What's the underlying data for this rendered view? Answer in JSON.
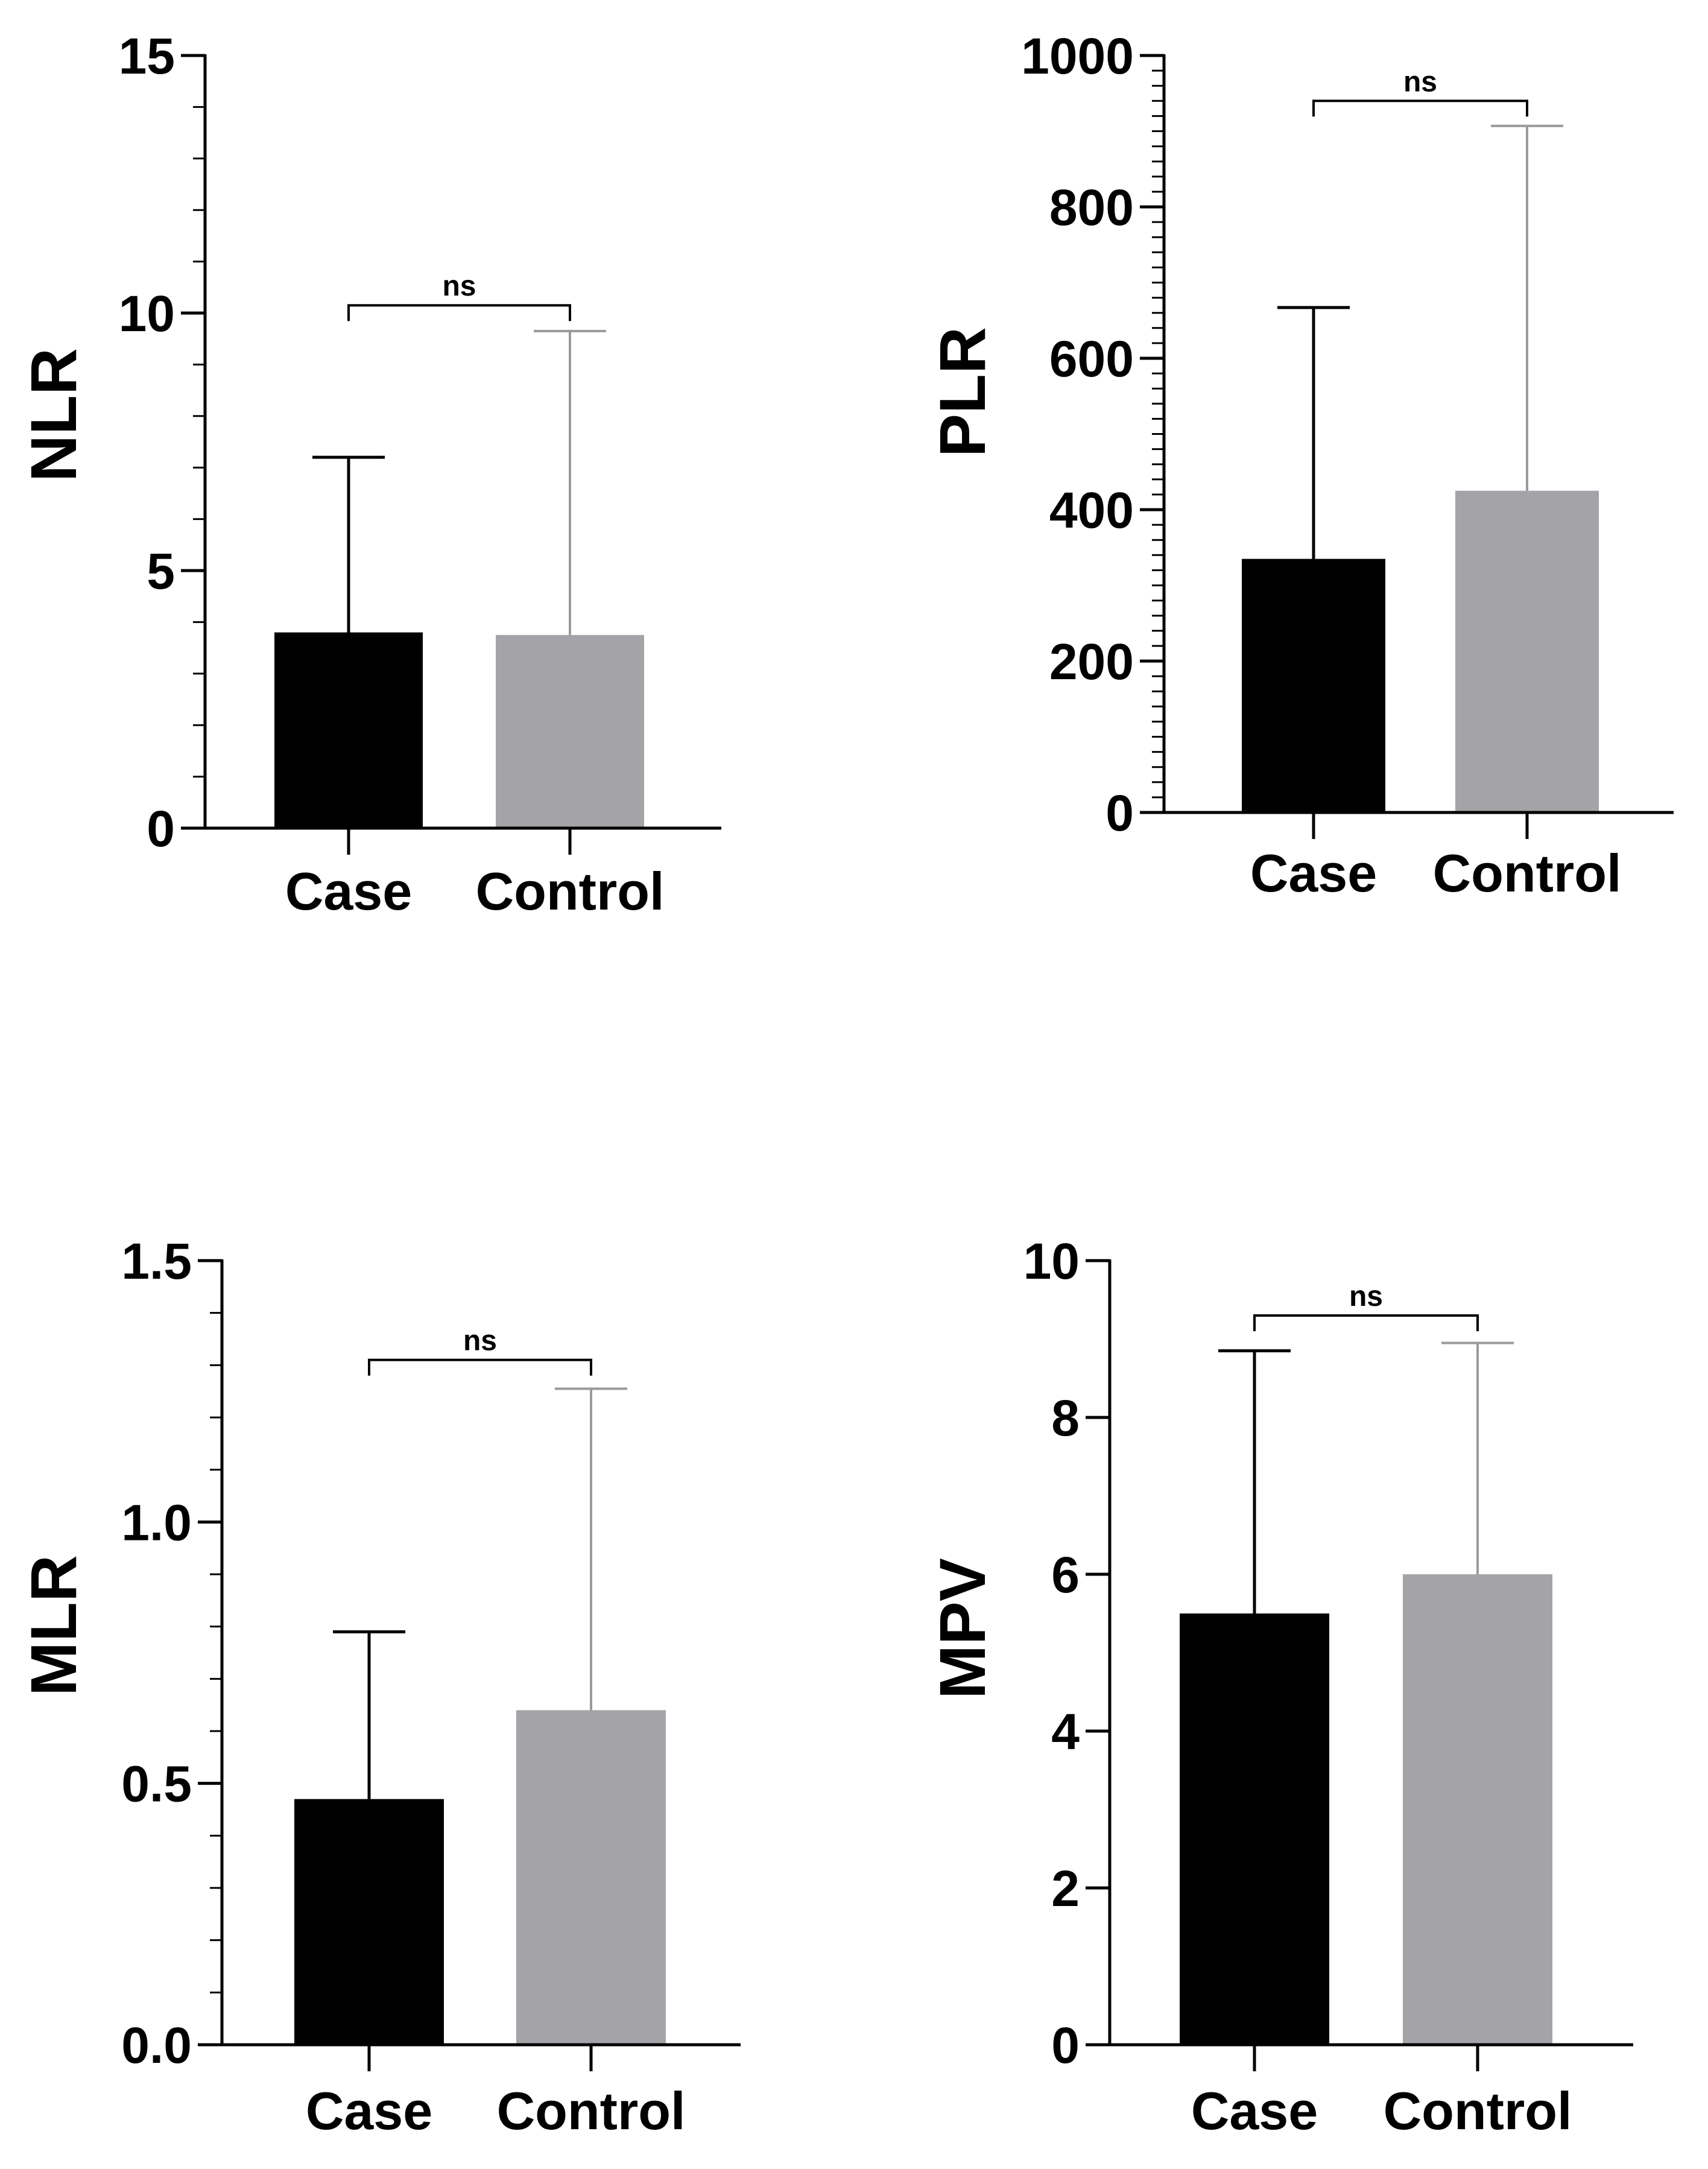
{
  "colors": {
    "case": "#000000",
    "control": "#a3a3a8",
    "control_error": "#9a9a9a",
    "axis": "#000000"
  },
  "chart_data": [
    {
      "type": "bar",
      "panel": "top-left",
      "ylabel": "NLR",
      "categories": [
        "Case",
        "Control"
      ],
      "values": [
        3.8,
        3.75
      ],
      "error_upper": [
        7.2,
        9.65
      ],
      "ylim": [
        0,
        15
      ],
      "major_ticks": [
        0,
        5,
        10,
        15
      ],
      "tick_labels": [
        "0",
        "5",
        "10",
        "15"
      ],
      "minor_ticks_per_major": 5,
      "significance": {
        "label": "ns",
        "y": 10.15
      }
    },
    {
      "type": "bar",
      "panel": "top-right",
      "ylabel": "PLR",
      "categories": [
        "Case",
        "Control"
      ],
      "values": [
        335,
        425
      ],
      "error_upper": [
        667,
        907
      ],
      "ylim": [
        0,
        1000
      ],
      "major_ticks": [
        0,
        200,
        400,
        600,
        800,
        1000
      ],
      "tick_labels": [
        "0",
        "200",
        "400",
        "600",
        "800",
        "1000"
      ],
      "minor_ticks_per_major": 10,
      "significance": {
        "label": "ns",
        "y": 940
      }
    },
    {
      "type": "bar",
      "panel": "bottom-left",
      "ylabel": "MLR",
      "categories": [
        "Case",
        "Control"
      ],
      "values": [
        0.47,
        0.64
      ],
      "error_upper": [
        0.79,
        1.255
      ],
      "ylim": [
        0,
        1.5
      ],
      "major_ticks": [
        0,
        0.5,
        1.0,
        1.5
      ],
      "tick_labels": [
        "0.0",
        "0.5",
        "1.0",
        "1.5"
      ],
      "minor_ticks_per_major": 5,
      "significance": {
        "label": "ns",
        "y": 1.31
      }
    },
    {
      "type": "bar",
      "panel": "bottom-right",
      "ylabel": "MPV",
      "categories": [
        "Case",
        "Control"
      ],
      "values": [
        5.5,
        6.0
      ],
      "error_upper": [
        8.85,
        8.95
      ],
      "ylim": [
        0,
        10
      ],
      "major_ticks": [
        0,
        2,
        4,
        6,
        8,
        10
      ],
      "tick_labels": [
        "0",
        "2",
        "4",
        "6",
        "8",
        "10"
      ],
      "minor_ticks_per_major": 1,
      "significance": {
        "label": "ns",
        "y": 9.3
      }
    }
  ]
}
